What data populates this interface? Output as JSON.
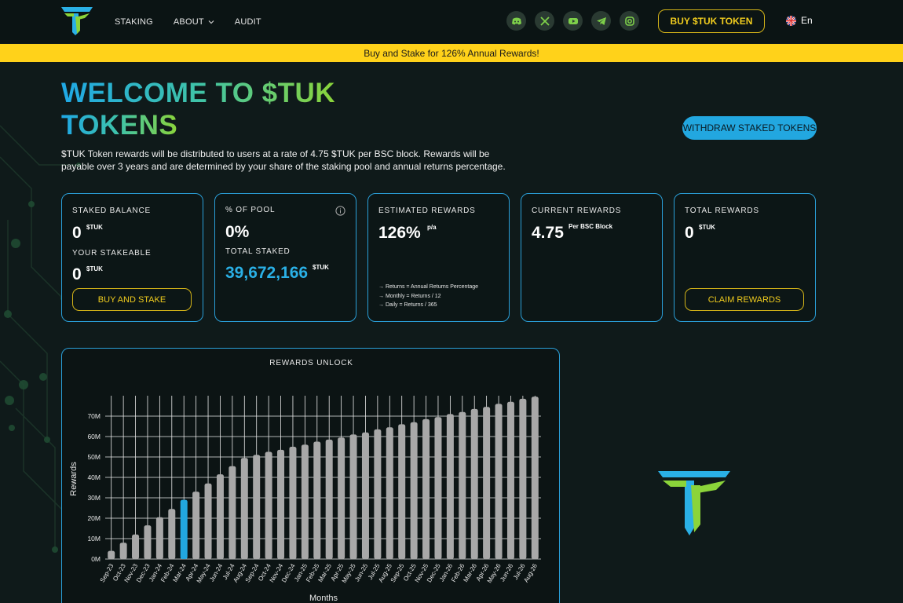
{
  "header": {
    "nav": [
      {
        "label": "STAKING",
        "dropdown": false
      },
      {
        "label": "ABOUT",
        "dropdown": true
      },
      {
        "label": "AUDIT",
        "dropdown": false
      }
    ],
    "socials": [
      "discord-icon",
      "x-icon",
      "youtube-icon",
      "telegram-icon",
      "instagram-icon"
    ],
    "buy_label": "BUY $TUK TOKEN",
    "language": "En"
  },
  "banner": "Buy and Stake for 126% Annual Rewards!",
  "hero": {
    "title_line1": "WELCOME TO $TUK",
    "title_line2": "TOKENS",
    "description": "$TUK Token rewards will be distributed to users at a rate of 4.75 $TUK per BSC block. Rewards will be payable over 3 years and are determined by your share of the staking pool and annual returns percentage.",
    "withdraw_label": "WITHDRAW STAKED TOKENS"
  },
  "cards": {
    "staked": {
      "label": "STAKED BALANCE",
      "value": "0",
      "unit": "$TUK",
      "stakeable_label": "YOUR STAKEABLE",
      "stakeable_value": "0",
      "stakeable_unit": "$TUK",
      "button": "BUY AND STAKE"
    },
    "pool": {
      "label": "% OF POOL",
      "value": "0%",
      "total_label": "TOTAL STAKED",
      "total_value": "39,672,166",
      "total_unit": "$TUK"
    },
    "estimated": {
      "label": "ESTIMATED REWARDS",
      "value": "126%",
      "unit": "p/a",
      "notes": [
        "Returns = Annual Returns Percentage",
        "Monthly = Returns / 12",
        "Daily = Returns / 365"
      ]
    },
    "current": {
      "label": "CURRENT REWARDS",
      "value": "4.75",
      "unit": "Per BSC Block"
    },
    "total": {
      "label": "TOTAL REWARDS",
      "value": "0",
      "unit": "$TUK",
      "button": "CLAIM REWARDS"
    }
  },
  "chart": {
    "title": "REWARDS UNLOCK"
  },
  "chart_data": {
    "type": "bar",
    "title": "REWARDS UNLOCK",
    "xlabel": "Months",
    "ylabel": "Rewards",
    "ylim": [
      0,
      80
    ],
    "yticks": [
      "0M",
      "10M",
      "20M",
      "30M",
      "40M",
      "50M",
      "60M",
      "70M"
    ],
    "categories": [
      "Sep-23",
      "Oct-23",
      "Nov-23",
      "Dec-23",
      "Jan-24",
      "Feb-24",
      "Mar-24",
      "Apr-24",
      "May-24",
      "Jun-24",
      "Jul-24",
      "Aug-24",
      "Sep-24",
      "Oct-24",
      "Nov-24",
      "Dec-24",
      "Jan-25",
      "Feb-25",
      "Mar-25",
      "Apr-25",
      "May-25",
      "Jun-25",
      "Jul-25",
      "Aug-25",
      "Sep-25",
      "Oct-25",
      "Nov-25",
      "Dec-25",
      "Jan-26",
      "Feb-26",
      "Mar-26",
      "Apr-26",
      "May-26",
      "Jun-26",
      "Jul-26",
      "Aug-26"
    ],
    "values": [
      4,
      8,
      12,
      16.5,
      20.5,
      24.5,
      29,
      33,
      37,
      41.5,
      45.5,
      49.5,
      51,
      52.5,
      53.5,
      55,
      56,
      57.5,
      58.5,
      59.5,
      61,
      62,
      63.5,
      64.5,
      66,
      67,
      68.5,
      69.5,
      71,
      72,
      73.5,
      74.5,
      76,
      77,
      78.5,
      79.5
    ],
    "highlight_index": 6,
    "bar_color": "#a8a8a8",
    "highlight_color": "#22a7e0",
    "grid": true
  }
}
